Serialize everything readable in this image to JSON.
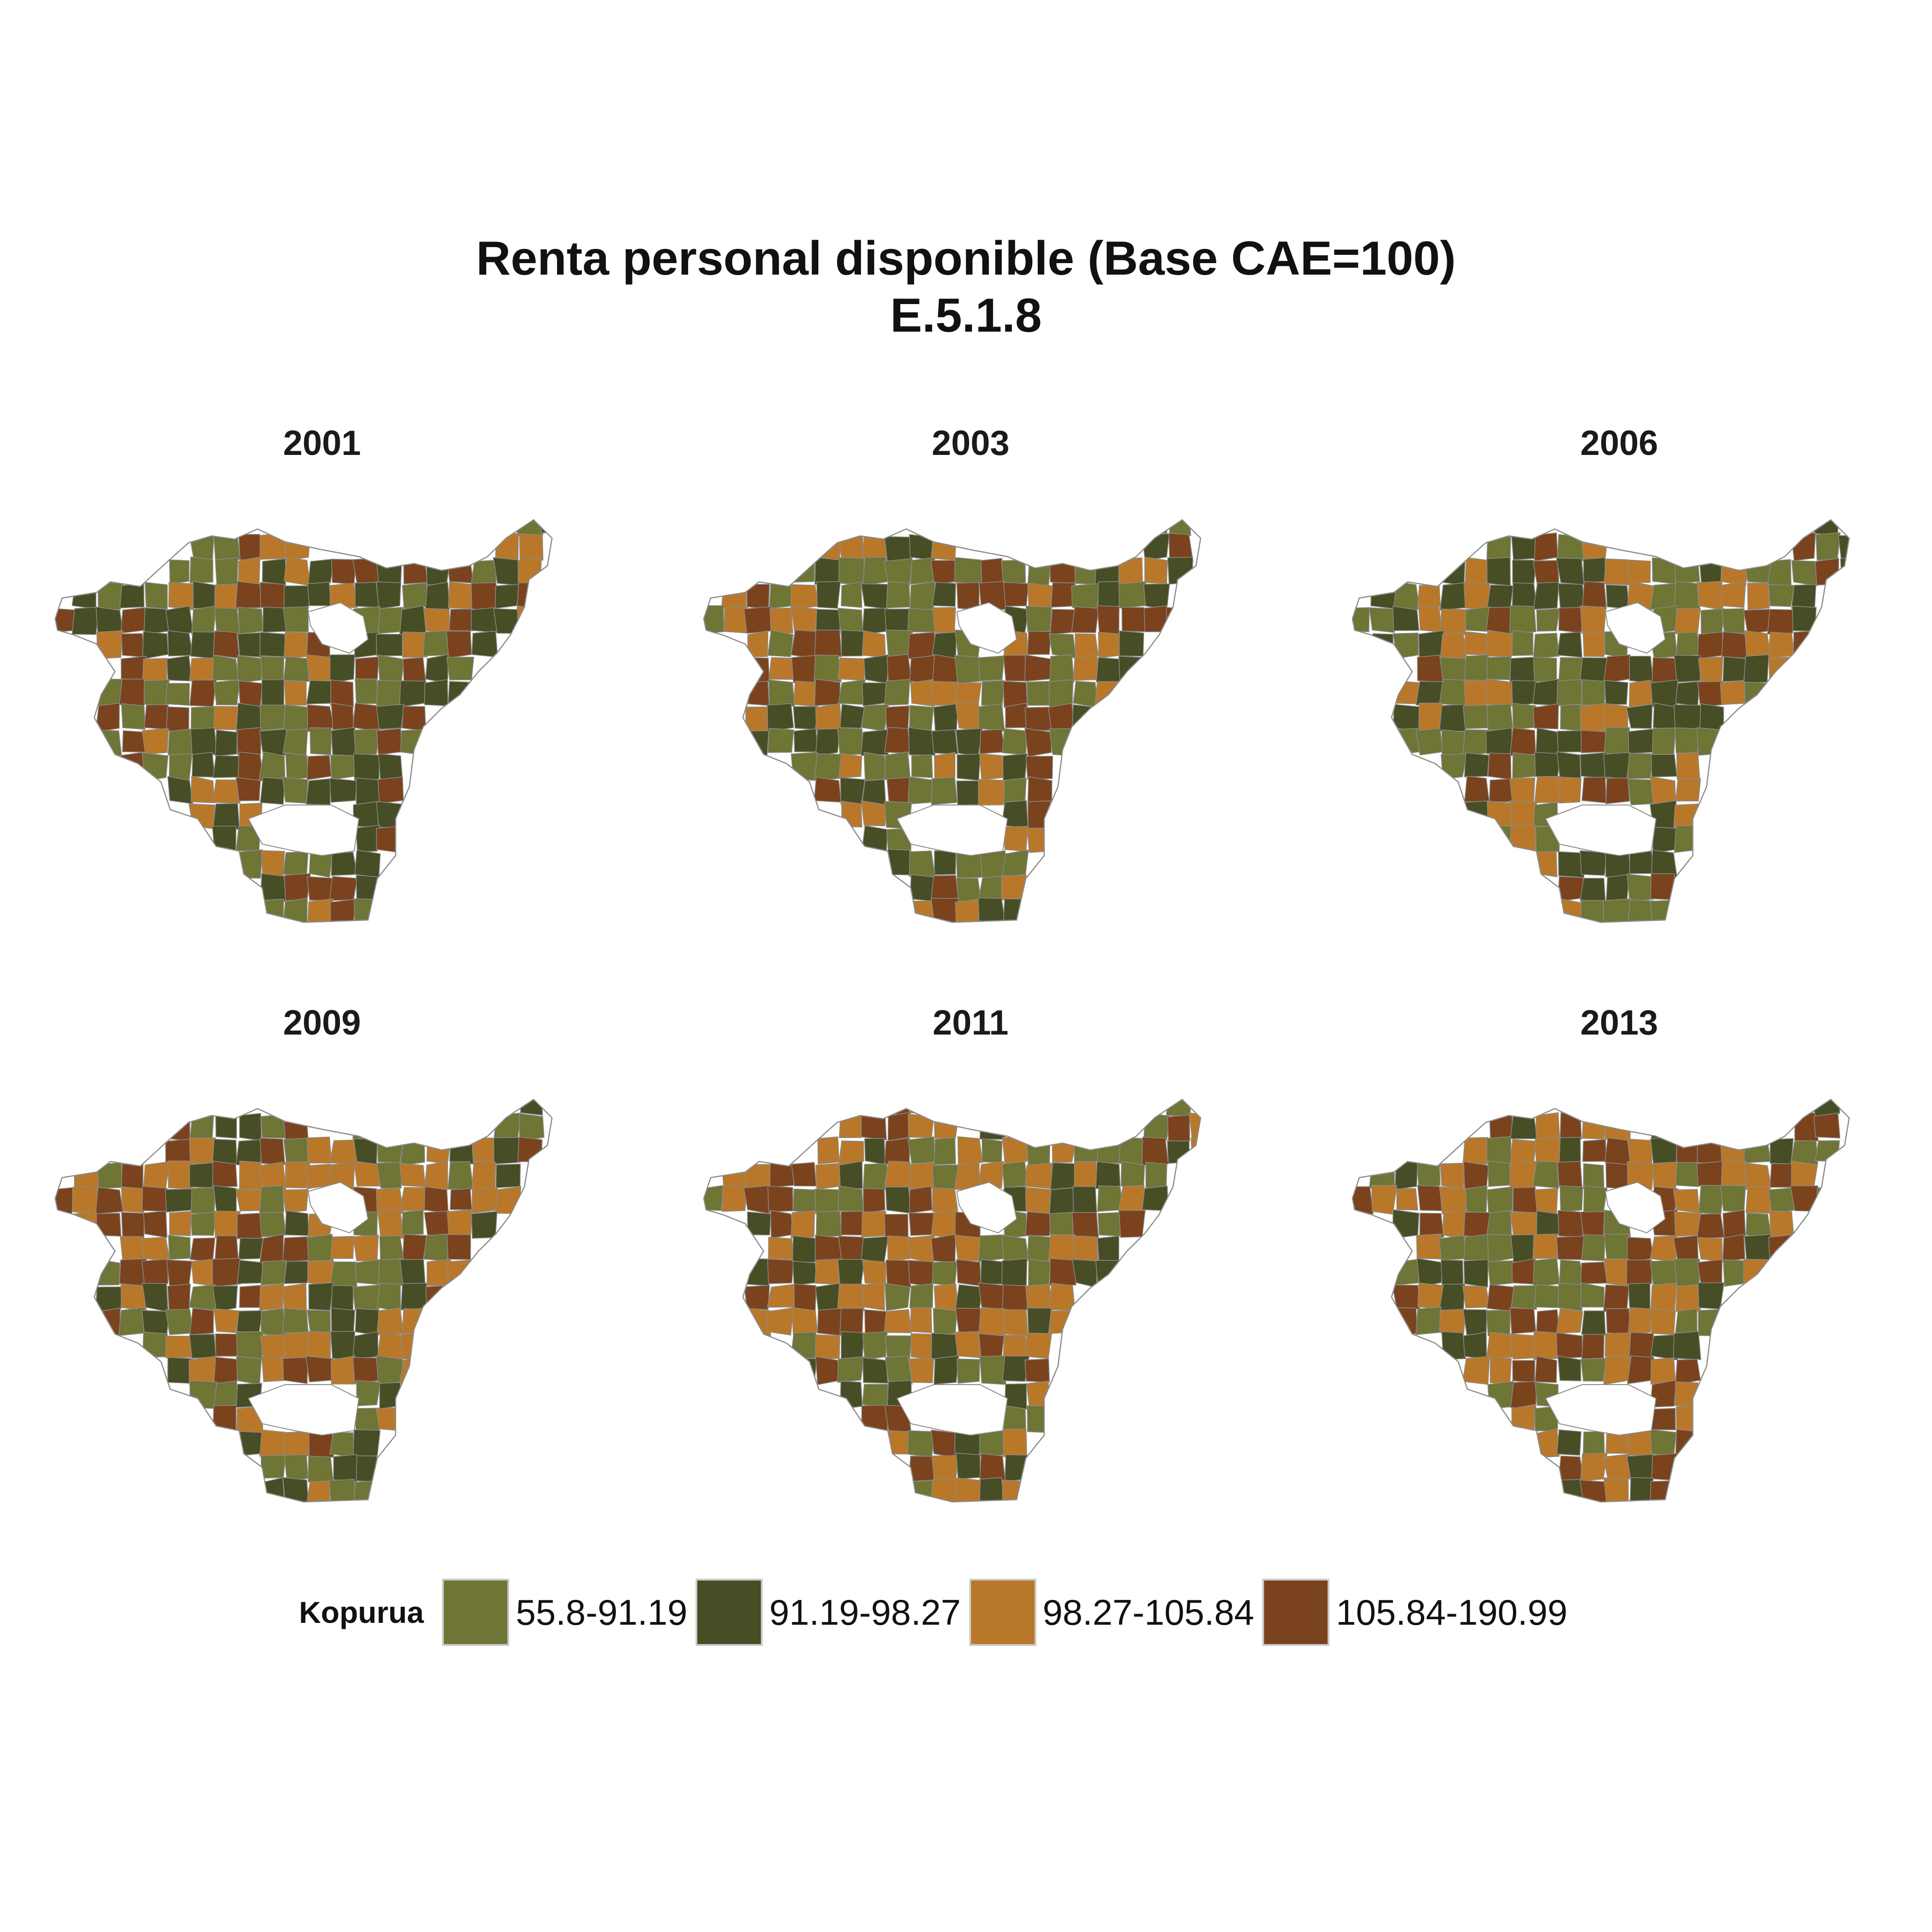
{
  "title": {
    "line1": "Renta personal disponible (Base CAE=100)",
    "line2": "E.5.1.8"
  },
  "legend": {
    "title": "Kopurua",
    "items": [
      {
        "label": "55.8-91.19",
        "color": "#6e7535"
      },
      {
        "label": "91.19-98.27",
        "color": "#474d24"
      },
      {
        "label": "98.27-105.84",
        "color": "#b97829"
      },
      {
        "label": "105.84-190.99",
        "color": "#7a421d"
      }
    ]
  },
  "panels": [
    {
      "year": "2001",
      "mix": [
        0.3,
        0.28,
        0.2,
        0.22
      ],
      "seed": 11
    },
    {
      "year": "2003",
      "mix": [
        0.27,
        0.28,
        0.21,
        0.24
      ],
      "seed": 23
    },
    {
      "year": "2006",
      "mix": [
        0.34,
        0.3,
        0.22,
        0.14
      ],
      "seed": 37
    },
    {
      "year": "2009",
      "mix": [
        0.24,
        0.22,
        0.33,
        0.21
      ],
      "seed": 41
    },
    {
      "year": "2011",
      "mix": [
        0.22,
        0.2,
        0.36,
        0.22
      ],
      "seed": 53
    },
    {
      "year": "2013",
      "mix": [
        0.2,
        0.16,
        0.38,
        0.26
      ],
      "seed": 67
    }
  ],
  "map_style": {
    "border_color": "#8a8a8a",
    "background": "#ffffff"
  }
}
